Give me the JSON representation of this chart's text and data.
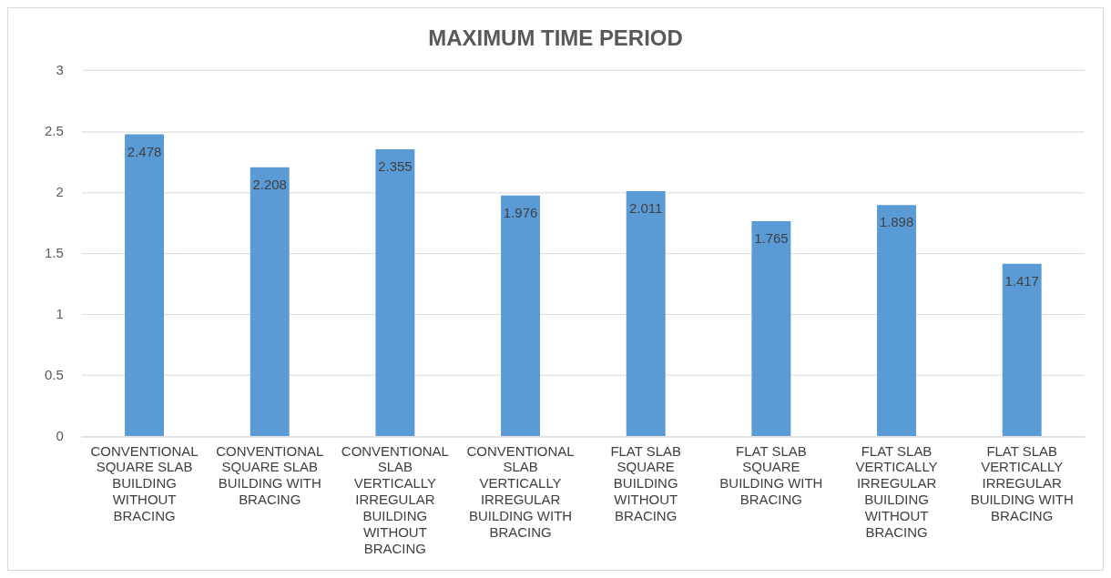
{
  "chart_data": {
    "type": "bar",
    "title": "MAXIMUM TIME PERIOD",
    "categories": [
      "CONVENTIONAL SQUARE SLAB BUILDING WITHOUT BRACING",
      "CONVENTIONAL SQUARE SLAB BUILDING WITH BRACING",
      "CONVENTIONAL SLAB VERTICALLY IRREGULAR BUILDING WITHOUT BRACING",
      "CONVENTIONAL SLAB VERTICALLY IRREGULAR BUILDING WITH BRACING",
      "FLAT SLAB SQUARE BUILDING WITHOUT BRACING",
      "FLAT SLAB SQUARE BUILDING WITH BRACING",
      "FLAT SLAB VERTICALLY IRREGULAR BUILDING WITHOUT BRACING",
      "FLAT SLAB VERTICALLY IRREGULAR BUILDING WITH BRACING"
    ],
    "values": [
      2.478,
      2.208,
      2.355,
      1.976,
      2.011,
      1.765,
      1.898,
      1.417
    ],
    "color": "#5b9bd5",
    "ylim": [
      0,
      3
    ],
    "yticks": [
      0,
      0.5,
      1,
      1.5,
      2,
      2.5,
      3
    ],
    "grid": "y",
    "data_labels": true,
    "legend": false
  }
}
